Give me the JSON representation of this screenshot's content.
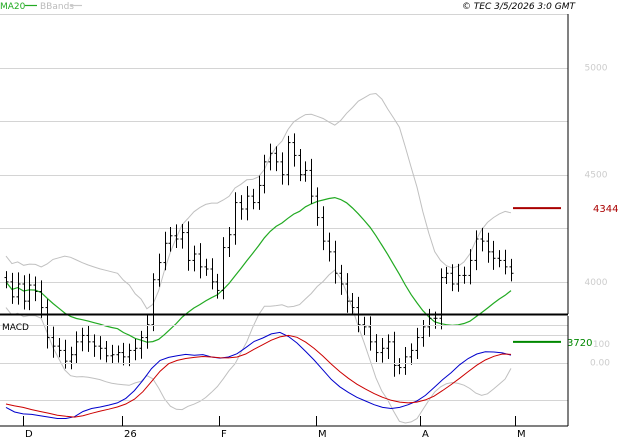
{
  "header": {
    "ma_label": "MA20",
    "bb_label": "BBands",
    "copyright": "© TEC 3/5/2026 3:0 GMT"
  },
  "colors": {
    "ma": "#22aa22",
    "bbands": "#c0c0c0",
    "price_bars": "#000000",
    "macd": "#0000cc",
    "signal": "#cc0000",
    "resistance": "#aa0000",
    "support": "#008800",
    "grid": "#d4d4d4",
    "axis": "#000000"
  },
  "chart_data": [
    {
      "type": "ohlc",
      "ma_period": 20,
      "y_ticks": [
        4000,
        4500,
        5000
      ],
      "y_tick_labels": [
        "4000",
        "4500",
        "5000"
      ],
      "ylim": [
        3850,
        5250
      ],
      "x_labels": [
        "D",
        "26",
        "F",
        "M",
        "A",
        "M"
      ],
      "levels": [
        {
          "label": "4344",
          "value": 4344
        },
        {
          "label": "3720",
          "value": 3720
        }
      ],
      "closes": [
        4000,
        3930,
        3990,
        3910,
        3985,
        3955,
        3880,
        3740,
        3700,
        3680,
        3630,
        3660,
        3720,
        3750,
        3720,
        3700,
        3690,
        3655,
        3660,
        3670,
        3650,
        3680,
        3690,
        3740,
        3800,
        4010,
        4090,
        4180,
        4215,
        4200,
        4230,
        4100,
        4130,
        4070,
        4060,
        4000,
        3960,
        4160,
        4220,
        4370,
        4340,
        4400,
        4370,
        4450,
        4560,
        4600,
        4560,
        4500,
        4650,
        4590,
        4500,
        4520,
        4400,
        4300,
        4190,
        4140,
        4040,
        3990,
        3910,
        3880,
        3800,
        3790,
        3720,
        3670,
        3690,
        3720,
        3610,
        3600,
        3650,
        3680,
        3740,
        3790,
        3830,
        3830,
        4020,
        4040,
        3990,
        4030,
        4030,
        4100,
        4200,
        4190,
        4140,
        4110,
        4100,
        4070,
        4040
      ]
    },
    {
      "type": "line",
      "title": "MACD",
      "y_ticks": [
        0,
        100
      ],
      "y_tick_labels": [
        "0.00",
        "100"
      ],
      "series": [
        {
          "values": [
            -240,
            -265,
            -275,
            -278,
            -285,
            -292,
            -300,
            -300,
            -290,
            -262,
            -246,
            -238,
            -228,
            -216,
            -192,
            -150,
            -95,
            -32,
            12,
            28,
            37,
            44,
            40,
            43,
            30,
            24,
            30,
            48,
            80,
            114,
            132,
            154,
            162,
            140,
            105,
            60,
            14,
            -38,
            -90,
            -130,
            -160,
            -186,
            -206,
            -226,
            -240,
            -246,
            -240,
            -226,
            -206,
            -176,
            -134,
            -92,
            -54,
            -12,
            22,
            46,
            58,
            57,
            52,
            40
          ]
        },
        {
          "label": "signal",
          "values": [
            -222,
            -232,
            -240,
            -252,
            -262,
            -272,
            -282,
            -288,
            -292,
            -285,
            -272,
            -260,
            -250,
            -238,
            -222,
            -196,
            -156,
            -102,
            -46,
            -6,
            12,
            22,
            28,
            33,
            30,
            26,
            25,
            30,
            46,
            72,
            96,
            120,
            138,
            146,
            136,
            110,
            76,
            36,
            -8,
            -48,
            -84,
            -116,
            -142,
            -166,
            -186,
            -202,
            -212,
            -216,
            -212,
            -200,
            -180,
            -150,
            -118,
            -84,
            -48,
            -14,
            14,
            34,
            46,
            44
          ]
        }
      ]
    }
  ]
}
